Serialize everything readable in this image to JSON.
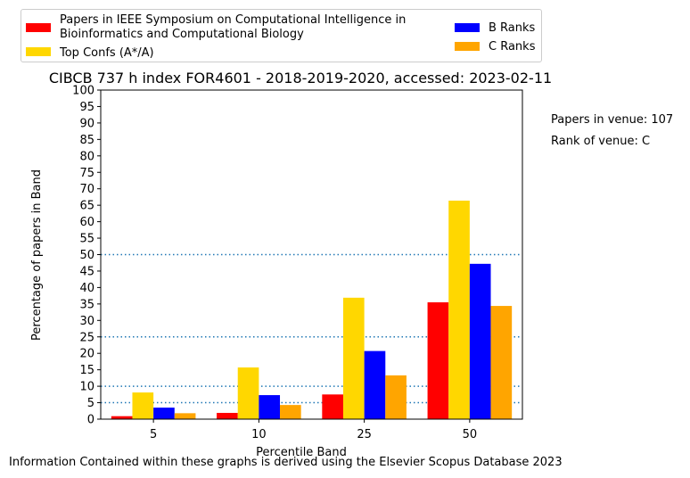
{
  "chart_data": {
    "type": "bar",
    "title": "CIBCB 737 h index FOR4601 - 2018-2019-2020, accessed: 2023-02-11",
    "xlabel": "Percentile Band",
    "ylabel": "Percentage of papers in Band",
    "categories": [
      "5",
      "10",
      "25",
      "50"
    ],
    "ylim": [
      0,
      100
    ],
    "yticks": [
      0,
      5,
      10,
      15,
      20,
      25,
      30,
      35,
      40,
      45,
      50,
      55,
      60,
      65,
      70,
      75,
      80,
      85,
      90,
      95,
      100
    ],
    "series": [
      {
        "name": "Papers in IEEE Symposium on Computational Intelligence in Bioinformatics and Computational Biology",
        "color": "#ff0000",
        "values": [
          0.9,
          1.9,
          7.5,
          35.5
        ]
      },
      {
        "name": "Top Confs (A*/A)",
        "color": "#ffd700",
        "values": [
          8.1,
          15.7,
          36.9,
          66.4
        ]
      },
      {
        "name": "B Ranks",
        "color": "#0000ff",
        "values": [
          3.5,
          7.3,
          20.7,
          47.2
        ]
      },
      {
        "name": "C Ranks",
        "color": "#ffa500",
        "values": [
          1.8,
          4.3,
          13.3,
          34.4
        ]
      }
    ],
    "reference_lines": [
      5,
      10,
      25,
      50
    ],
    "reference_line_color": "#1f77b4",
    "legend_placement": "top-left",
    "grid": false
  },
  "legend_lines": {
    "red_line1": "Papers in IEEE Symposium on Computational Intelligence in",
    "red_line2": "Bioinformatics and Computational Biology",
    "gold": "Top Confs (A*/A)",
    "blue": "B Ranks",
    "orange": "C Ranks"
  },
  "side_info": {
    "papers": "Papers in venue: 107",
    "rank": "Rank of venue: C"
  },
  "footer": "Information Contained within these graphs is derived using the Elsevier Scopus Database 2023"
}
